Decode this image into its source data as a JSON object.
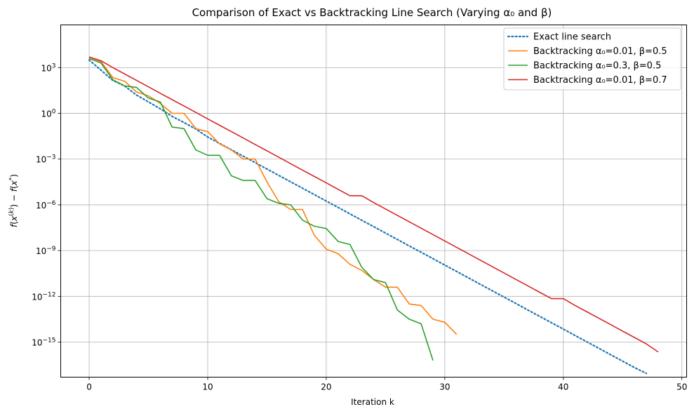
{
  "chart_data": {
    "type": "line",
    "title": "Comparison of Exact vs Backtracking Line Search (Varying α₀ and β)",
    "xlabel": "Iteration k",
    "ylabel": "f(x^(k)) − f(x*)",
    "yscale": "log",
    "xlim": [
      -2.4,
      50.4
    ],
    "ylim_log10": [
      -17.3,
      5.8
    ],
    "x_ticks": [
      0,
      10,
      20,
      30,
      40,
      50
    ],
    "x_tick_labels": [
      "0",
      "10",
      "20",
      "30",
      "40",
      "50"
    ],
    "y_tick_exponents": [
      3,
      0,
      -3,
      -6,
      -9,
      -12,
      -15
    ],
    "y_tick_labels": [
      "10",
      "10",
      "10",
      "10",
      "10",
      "10",
      "10"
    ],
    "y_tick_superscripts": [
      "3",
      "0",
      "−3",
      "−6",
      "−9",
      "−12",
      "−15"
    ],
    "grid": true,
    "legend_position": "top-right",
    "series": [
      {
        "name": "Exact line search",
        "color": "#1f77b4",
        "style": "dotted",
        "x": [
          0,
          1,
          2,
          3,
          4,
          5,
          6,
          7,
          8,
          9,
          10,
          11,
          12,
          13,
          14,
          15,
          16,
          17,
          18,
          19,
          20,
          21,
          22,
          23,
          24,
          25,
          26,
          27,
          28,
          29,
          30,
          31,
          32,
          33,
          34,
          35,
          36,
          37,
          38,
          39,
          40,
          41,
          42,
          43,
          44,
          45,
          46,
          47
        ],
        "log10_y": [
          3.5,
          2.83,
          2.16,
          1.79,
          1.2,
          0.75,
          0.3,
          -0.2,
          -0.6,
          -1.03,
          -1.55,
          -1.97,
          -2.39,
          -2.81,
          -3.23,
          -3.65,
          -4.07,
          -4.49,
          -4.91,
          -5.33,
          -5.75,
          -6.17,
          -6.59,
          -7.01,
          -7.43,
          -7.85,
          -8.27,
          -8.69,
          -9.11,
          -9.53,
          -9.95,
          -10.37,
          -10.79,
          -11.21,
          -11.63,
          -12.05,
          -12.47,
          -12.89,
          -13.31,
          -13.73,
          -14.15,
          -14.57,
          -14.99,
          -15.41,
          -15.83,
          -16.25,
          -16.67,
          -17.05
        ]
      },
      {
        "name": "Backtracking α₀=0.01, β=0.5",
        "color": "#ff7f0e",
        "style": "solid",
        "x": [
          0,
          1,
          2,
          3,
          4,
          5,
          6,
          7,
          8,
          9,
          10,
          11,
          12,
          13,
          14,
          15,
          16,
          17,
          18,
          19,
          20,
          21,
          22,
          23,
          24,
          25,
          26,
          27,
          28,
          29,
          30,
          31
        ],
        "log10_y": [
          3.7,
          3.4,
          2.35,
          2.1,
          1.4,
          1.15,
          0.65,
          0.0,
          0.0,
          -1.0,
          -1.2,
          -2.0,
          -2.4,
          -3.0,
          -3.0,
          -4.5,
          -5.8,
          -6.3,
          -6.3,
          -8.0,
          -8.9,
          -9.2,
          -9.9,
          -10.3,
          -10.9,
          -11.4,
          -11.4,
          -12.5,
          -12.6,
          -13.5,
          -13.7,
          -14.5
        ]
      },
      {
        "name": "Backtracking α₀=0.3, β=0.5",
        "color": "#2ca02c",
        "style": "solid",
        "x": [
          0,
          1,
          2,
          3,
          4,
          5,
          6,
          7,
          8,
          9,
          10,
          11,
          12,
          13,
          14,
          15,
          16,
          17,
          18,
          19,
          20,
          21,
          22,
          23,
          24,
          25,
          26,
          27,
          28,
          29
        ],
        "log10_y": [
          3.6,
          3.3,
          2.2,
          1.8,
          1.7,
          1.0,
          0.75,
          -0.9,
          -1.0,
          -2.4,
          -2.75,
          -2.75,
          -4.1,
          -4.4,
          -4.4,
          -5.6,
          -5.9,
          -6.0,
          -7.0,
          -7.4,
          -7.55,
          -8.4,
          -8.6,
          -10.1,
          -10.9,
          -11.1,
          -12.9,
          -13.5,
          -13.8,
          -16.2
        ]
      },
      {
        "name": "Backtracking α₀=0.01, β=0.7",
        "color": "#d62728",
        "style": "solid",
        "x": [
          0,
          1,
          2,
          3,
          4,
          5,
          6,
          7,
          8,
          9,
          10,
          11,
          12,
          13,
          14,
          15,
          16,
          17,
          18,
          19,
          20,
          21,
          22,
          23,
          24,
          25,
          26,
          27,
          28,
          29,
          30,
          31,
          32,
          33,
          34,
          35,
          36,
          37,
          38,
          39,
          40,
          41,
          42,
          43,
          44,
          45,
          46,
          47,
          48
        ],
        "log10_y": [
          3.7,
          3.45,
          3.0,
          2.58,
          2.16,
          1.74,
          1.32,
          0.9,
          0.48,
          0.06,
          -0.36,
          -0.78,
          -1.2,
          -1.62,
          -2.04,
          -2.46,
          -2.88,
          -3.3,
          -3.72,
          -4.14,
          -4.56,
          -4.98,
          -5.4,
          -5.4,
          -5.85,
          -6.27,
          -6.69,
          -7.11,
          -7.53,
          -7.95,
          -8.37,
          -8.79,
          -9.21,
          -9.63,
          -10.05,
          -10.47,
          -10.89,
          -11.31,
          -11.73,
          -12.15,
          -12.15,
          -12.6,
          -13.02,
          -13.44,
          -13.86,
          -14.28,
          -14.7,
          -15.12,
          -15.65
        ]
      }
    ]
  }
}
